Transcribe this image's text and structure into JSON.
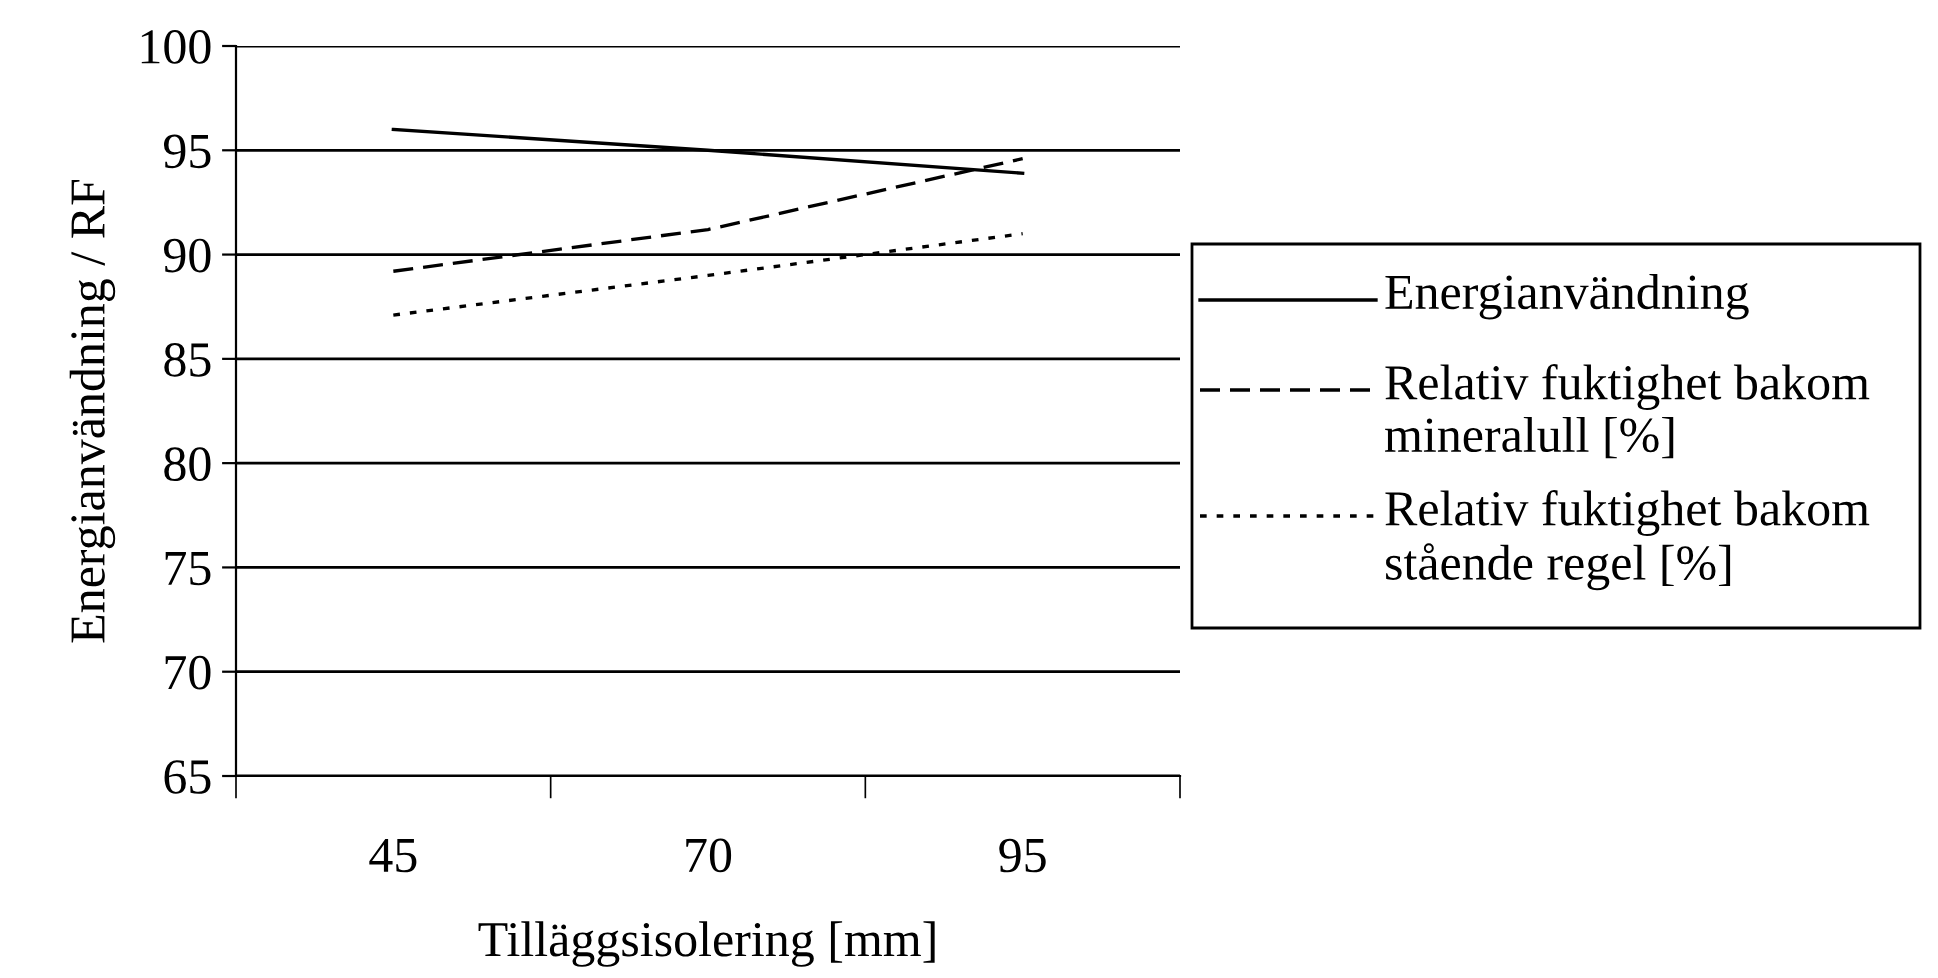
{
  "chart_data": {
    "type": "line",
    "xlabel": "Tilläggsisolering [mm]",
    "ylabel": "Energianvändning / RF",
    "categories": [
      "45",
      "70",
      "95"
    ],
    "series": [
      {
        "name": "Energianvändning",
        "color": "#000000",
        "line_style": "solid",
        "values": [
          96.0,
          95.0,
          93.9
        ]
      },
      {
        "name": "Relativ fuktighet bakom mineralull [%]",
        "color": "#000000",
        "line_style": "dashed",
        "values": [
          89.2,
          91.2,
          94.6
        ]
      },
      {
        "name": "Relativ fuktighet bakom stående regel [%]",
        "color": "#000000",
        "line_style": "dotted",
        "values": [
          87.1,
          89.0,
          91.0
        ]
      }
    ],
    "ylim": [
      65,
      100
    ],
    "yticks": [
      65,
      70,
      75,
      80,
      85,
      90,
      95,
      100
    ],
    "grid": "y",
    "legend": "right",
    "marker": "none"
  }
}
